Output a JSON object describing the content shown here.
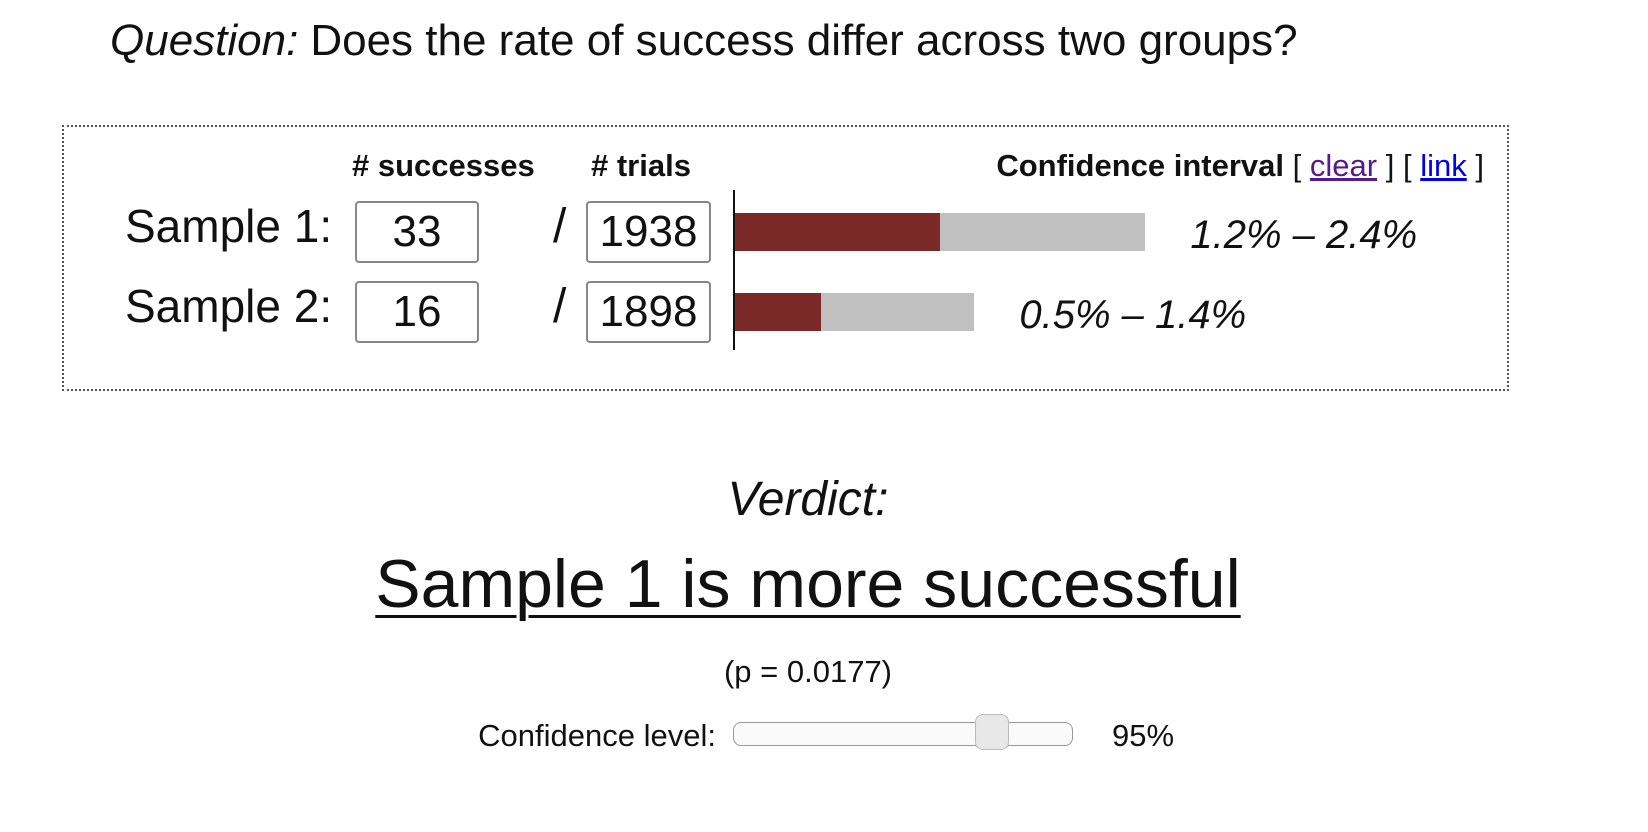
{
  "question": {
    "label": "Question:",
    "text": "Does the rate of success differ across two groups?"
  },
  "form": {
    "headers": {
      "successes": "# successes",
      "trials": "# trials",
      "interval": "Confidence interval"
    },
    "bracket_open": "[",
    "bracket_close": "]",
    "links": {
      "clear": "clear",
      "link": "link"
    },
    "separator": "/",
    "samples": [
      {
        "label": "Sample 1:",
        "successes": "33",
        "trials": "1938",
        "ci_low": 1.2,
        "ci_high": 2.4,
        "ci_label": "1.2% – 2.4%"
      },
      {
        "label": "Sample 2:",
        "successes": "16",
        "trials": "1898",
        "ci_low": 0.5,
        "ci_high": 1.4,
        "ci_label": "0.5% – 1.4%"
      }
    ]
  },
  "verdict": {
    "label": "Verdict:",
    "text": "Sample 1 is more successful",
    "p_value": "(p = 0.0177)"
  },
  "confidence": {
    "label": "Confidence level:",
    "value": 95,
    "value_label": "95%"
  }
}
